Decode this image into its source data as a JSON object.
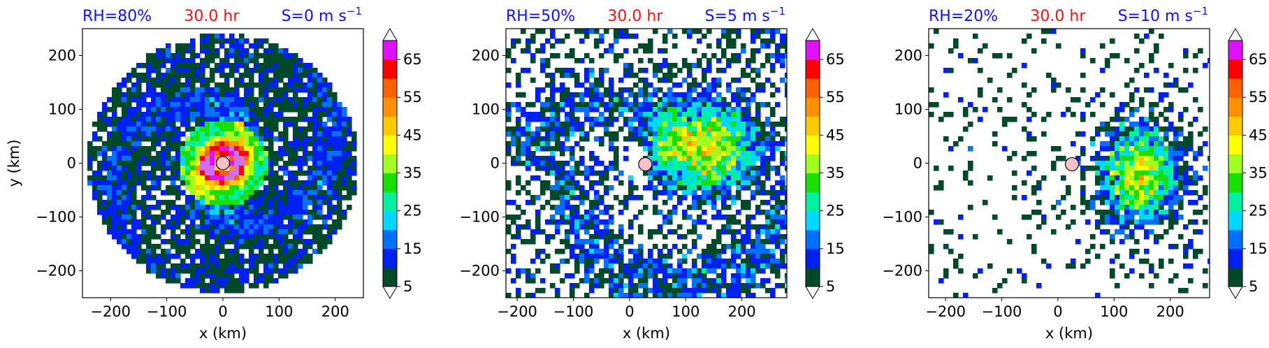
{
  "colors": {
    "title_blue": "#1010ff",
    "title_red": "#ff1010",
    "center_marker": "#ffc0cb",
    "levels": [
      "#004a2a",
      "#0020f0",
      "#0070ff",
      "#00d8ff",
      "#00f0a0",
      "#18e000",
      "#a0ff20",
      "#ffff00",
      "#ffc800",
      "#ff9000",
      "#ff6000",
      "#ff0000",
      "#e010ff",
      "#d070f0",
      "#ffc8ff"
    ]
  },
  "chart_data": [
    {
      "type": "heatmap",
      "title_left": "RH=80%",
      "title_center": "30.0 hr",
      "title_right_main": "S=0 m s",
      "title_right_sup": "−1",
      "xlabel": "x (km)",
      "ylabel": "y (km)",
      "xlim": [
        -250,
        250
      ],
      "ylim": [
        -250,
        250
      ],
      "xticks": [
        "−200",
        "−100",
        "0",
        "100",
        "200"
      ],
      "xtick_values": [
        -200,
        -100,
        0,
        100,
        200
      ],
      "yticks": [
        "200",
        "100",
        "0",
        "−100",
        "−200"
      ],
      "ytick_values": [
        200,
        100,
        0,
        -100,
        -200
      ],
      "center": [
        0,
        0
      ],
      "colorbar_levels": [
        5,
        10,
        15,
        20,
        25,
        30,
        35,
        40,
        45,
        50,
        55,
        60,
        65,
        70
      ],
      "colorbar_ticks": [
        "5",
        "15",
        "25",
        "35",
        "45",
        "55",
        "65"
      ],
      "colorbar_tick_values": [
        5,
        15,
        25,
        35,
        45,
        55,
        65
      ]
    },
    {
      "type": "heatmap",
      "title_left": "RH=50%",
      "title_center": "30.0 hr",
      "title_right_main": "S=5 m s",
      "title_right_sup": "−1",
      "xlabel": "x (km)",
      "ylabel": "",
      "xlim": [
        -220,
        280
      ],
      "ylim": [
        -250,
        250
      ],
      "xticks": [
        "−200",
        "−100",
        "0",
        "100",
        "200"
      ],
      "xtick_values": [
        -200,
        -100,
        0,
        100,
        200
      ],
      "yticks": [
        "200",
        "100",
        "0",
        "−100",
        "−200"
      ],
      "ytick_values": [
        200,
        100,
        0,
        -100,
        -200
      ],
      "center": [
        28,
        -2
      ],
      "colorbar_levels": [
        5,
        10,
        15,
        20,
        25,
        30,
        35,
        40,
        45,
        50,
        55,
        60,
        65,
        70
      ],
      "colorbar_ticks": [
        "5",
        "15",
        "25",
        "35",
        "45",
        "55",
        "65"
      ],
      "colorbar_tick_values": [
        5,
        15,
        25,
        35,
        45,
        55,
        65
      ]
    },
    {
      "type": "heatmap",
      "title_left": "RH=20%",
      "title_center": "30.0 hr",
      "title_right_main": "S=10 m s",
      "title_right_sup": "−1",
      "xlabel": "x (km)",
      "ylabel": "",
      "xlim": [
        -230,
        270
      ],
      "ylim": [
        -250,
        250
      ],
      "xticks": [
        "−200",
        "−100",
        "0",
        "100",
        "200"
      ],
      "xtick_values": [
        -200,
        -100,
        0,
        100,
        200
      ],
      "yticks": [
        "200",
        "100",
        "0",
        "−100",
        "−200"
      ],
      "ytick_values": [
        200,
        100,
        0,
        -100,
        -200
      ],
      "center": [
        25,
        -2
      ],
      "colorbar_levels": [
        5,
        10,
        15,
        20,
        25,
        30,
        35,
        40,
        45,
        50,
        55,
        60,
        65,
        70
      ],
      "colorbar_ticks": [
        "5",
        "15",
        "25",
        "35",
        "45",
        "55",
        "65"
      ],
      "colorbar_tick_values": [
        5,
        15,
        25,
        35,
        45,
        55,
        65
      ]
    }
  ]
}
